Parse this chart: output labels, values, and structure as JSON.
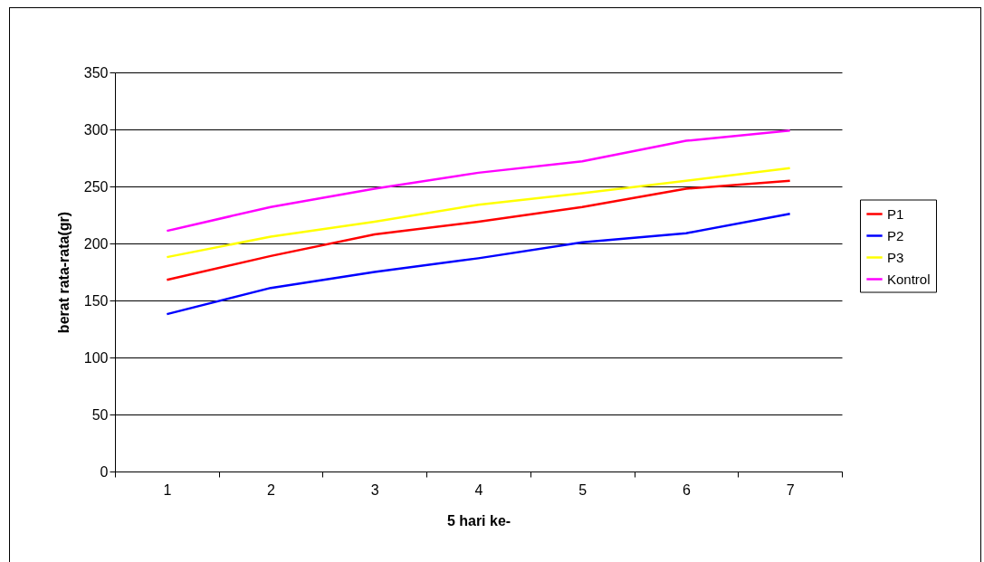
{
  "chart_data": {
    "type": "line",
    "xlabel": "5 hari ke-",
    "ylabel": "berat rata-rata(gr)",
    "categories": [
      "1",
      "2",
      "3",
      "4",
      "5",
      "6",
      "7"
    ],
    "series": [
      {
        "name": "P1",
        "color": "#ff0000",
        "values": [
          168,
          189,
          208,
          219,
          232,
          248,
          255
        ]
      },
      {
        "name": "P2",
        "color": "#0000ff",
        "values": [
          138,
          161,
          175,
          187,
          201,
          209,
          226
        ]
      },
      {
        "name": "P3",
        "color": "#ffff00",
        "values": [
          188,
          206,
          219,
          234,
          244,
          255,
          266
        ]
      },
      {
        "name": "Kontrol",
        "color": "#ff00ff",
        "values": [
          211,
          232,
          248,
          262,
          272,
          290,
          299
        ]
      }
    ],
    "ylim": [
      0,
      350
    ],
    "yticks": [
      0,
      50,
      100,
      150,
      200,
      250,
      300,
      350
    ],
    "grid": "y",
    "legend": "right",
    "marker": "none",
    "line_style": "solid"
  }
}
